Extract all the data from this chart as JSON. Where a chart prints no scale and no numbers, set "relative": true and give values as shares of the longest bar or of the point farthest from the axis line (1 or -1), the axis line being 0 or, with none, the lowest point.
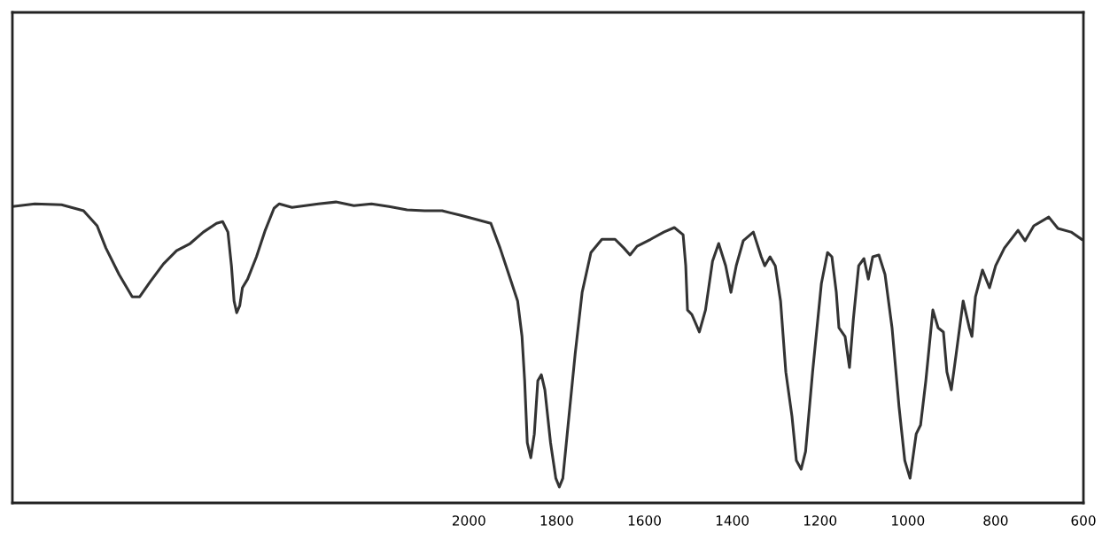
{
  "chart_data": {
    "type": "line",
    "relative": true,
    "tick_labels": "x",
    "grid": false,
    "legend": false,
    "marker": "none",
    "line_style": "solid",
    "xlim": [
      3040,
      600
    ],
    "xticks": [
      2000,
      1800,
      1600,
      1400,
      1200,
      1000,
      800,
      600
    ],
    "series": [
      {
        "color": "#333333",
        "x": [
          3040,
          2989,
          2928,
          2878,
          2847,
          2827,
          2797,
          2767,
          2750,
          2726,
          2696,
          2666,
          2635,
          2605,
          2575,
          2561,
          2549,
          2541,
          2535,
          2529,
          2522,
          2516,
          2504,
          2484,
          2464,
          2444,
          2432,
          2403,
          2373,
          2343,
          2303,
          2262,
          2222,
          2182,
          2141,
          2101,
          2061,
          2020,
          1980,
          1950,
          1929,
          1909,
          1889,
          1879,
          1873,
          1867,
          1859,
          1851,
          1843,
          1835,
          1827,
          1814,
          1802,
          1794,
          1786,
          1774,
          1758,
          1742,
          1722,
          1697,
          1667,
          1647,
          1633,
          1617,
          1586,
          1556,
          1532,
          1512,
          1506,
          1502,
          1492,
          1475,
          1461,
          1445,
          1431,
          1415,
          1403,
          1391,
          1375,
          1352,
          1334,
          1326,
          1314,
          1302,
          1290,
          1278,
          1264,
          1254,
          1243,
          1233,
          1217,
          1197,
          1183,
          1173,
          1163,
          1157,
          1143,
          1133,
          1124,
          1112,
          1100,
          1090,
          1080,
          1066,
          1052,
          1036,
          1020,
          1007,
          995,
          981,
          971,
          959,
          943,
          931,
          919,
          911,
          901,
          890,
          874,
          860,
          854,
          846,
          830,
          814,
          800,
          780,
          749,
          733,
          713,
          679,
          658,
          628,
          604
        ],
        "values": [
          0.985,
          0.994,
          0.991,
          0.971,
          0.921,
          0.847,
          0.759,
          0.685,
          0.685,
          0.735,
          0.794,
          0.838,
          0.862,
          0.9,
          0.929,
          0.935,
          0.9,
          0.788,
          0.671,
          0.632,
          0.656,
          0.715,
          0.744,
          0.818,
          0.906,
          0.979,
          0.994,
          0.982,
          0.988,
          0.994,
          1.0,
          0.988,
          0.994,
          0.985,
          0.974,
          0.971,
          0.971,
          0.956,
          0.941,
          0.929,
          0.847,
          0.759,
          0.671,
          0.553,
          0.406,
          0.2,
          0.15,
          0.229,
          0.406,
          0.426,
          0.376,
          0.2,
          0.082,
          0.053,
          0.082,
          0.259,
          0.494,
          0.7,
          0.832,
          0.876,
          0.876,
          0.847,
          0.824,
          0.853,
          0.876,
          0.9,
          0.915,
          0.891,
          0.788,
          0.641,
          0.626,
          0.568,
          0.641,
          0.803,
          0.862,
          0.788,
          0.7,
          0.788,
          0.871,
          0.9,
          0.818,
          0.788,
          0.818,
          0.788,
          0.671,
          0.435,
          0.288,
          0.141,
          0.112,
          0.171,
          0.435,
          0.729,
          0.832,
          0.818,
          0.7,
          0.582,
          0.553,
          0.45,
          0.612,
          0.788,
          0.812,
          0.744,
          0.818,
          0.824,
          0.759,
          0.582,
          0.318,
          0.141,
          0.082,
          0.229,
          0.259,
          0.406,
          0.641,
          0.582,
          0.568,
          0.435,
          0.376,
          0.494,
          0.671,
          0.582,
          0.553,
          0.685,
          0.774,
          0.715,
          0.788,
          0.847,
          0.906,
          0.871,
          0.921,
          0.95,
          0.912,
          0.9,
          0.876
        ]
      }
    ]
  }
}
